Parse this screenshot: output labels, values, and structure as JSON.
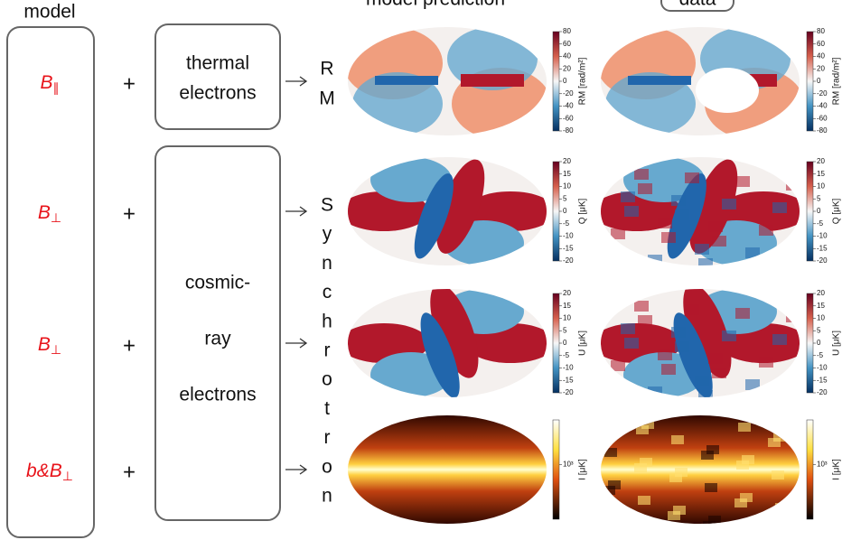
{
  "headers": {
    "model": "model",
    "prediction": "model prediction",
    "data": "data"
  },
  "model_terms": [
    {
      "symbol": "B",
      "subscript": "∥"
    },
    {
      "symbol": "B",
      "subscript": "⊥"
    },
    {
      "symbol": "B",
      "subscript": "⊥"
    },
    {
      "symbol": "b&B",
      "subscript": "⊥"
    }
  ],
  "plus_signs": [
    "+",
    "+",
    "+",
    "+"
  ],
  "electron_boxes": [
    {
      "lines": [
        "thermal",
        "electrons"
      ]
    },
    {
      "lines": [
        "cosmic-",
        "ray",
        "electrons"
      ]
    }
  ],
  "observables": [
    {
      "letters": [
        "R",
        "M"
      ]
    },
    {
      "letters": [
        "S",
        "y",
        "n",
        "c",
        "h",
        "r",
        "o",
        "t",
        "r",
        "o",
        "n"
      ]
    }
  ],
  "rows": [
    {
      "colorbar_label": "RM [rad/m²]",
      "ticks": [
        "80",
        "60",
        "40",
        "20",
        "0",
        "-20",
        "-40",
        "-60",
        "-80"
      ]
    },
    {
      "colorbar_label": "Q [μK]",
      "ticks": [
        "20",
        "15",
        "10",
        "5",
        "0",
        "-5",
        "-10",
        "-15",
        "-20"
      ]
    },
    {
      "colorbar_label": "U [μK]",
      "ticks": [
        "20",
        "15",
        "10",
        "5",
        "0",
        "-5",
        "-10",
        "-15",
        "-20"
      ]
    },
    {
      "colorbar_label": "I [μK]",
      "ticks": [
        "10³"
      ]
    }
  ]
}
